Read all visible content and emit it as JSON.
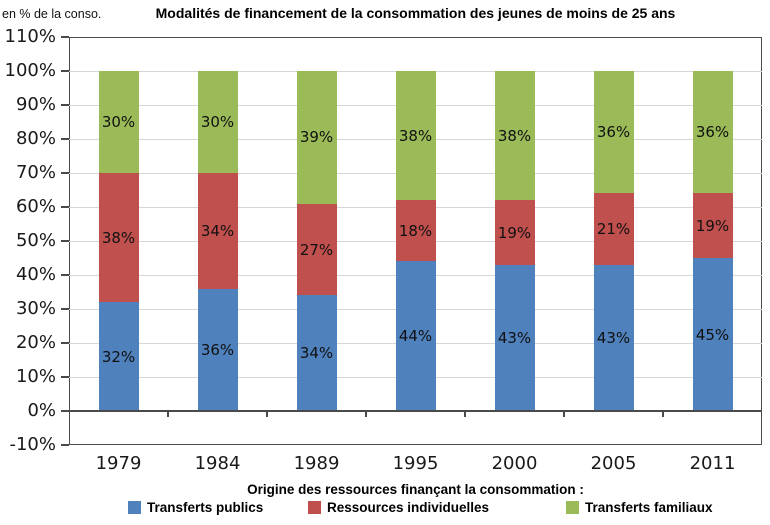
{
  "chart_data": {
    "type": "bar",
    "stacked": true,
    "title": "Modalités de financement de la consommation des jeunes de moins de 25 ans",
    "unit_note": "en % de la conso.",
    "categories": [
      "1979",
      "1984",
      "1989",
      "1995",
      "2000",
      "2005",
      "2011"
    ],
    "series": [
      {
        "name": "Transferts publics",
        "color": "#4F81BD",
        "values": [
          32,
          36,
          34,
          44,
          43,
          43,
          45
        ]
      },
      {
        "name": "Ressources individuelles",
        "color": "#C0504D",
        "values": [
          38,
          34,
          27,
          18,
          19,
          21,
          19
        ]
      },
      {
        "name": "Transferts familiaux",
        "color": "#9BBB59",
        "values": [
          30,
          30,
          39,
          38,
          38,
          36,
          36
        ]
      }
    ],
    "ylim": [
      -10,
      110
    ],
    "ytick_step": 10,
    "yticks": [
      "110%",
      "100%",
      "90%",
      "80%",
      "70%",
      "60%",
      "50%",
      "40%",
      "30%",
      "20%",
      "10%",
      "0%",
      "-10%"
    ],
    "bar_label_suffix": "%",
    "grid": true,
    "legend_title": "Origine des ressources finançant la consommation :",
    "legend_position": "bottom",
    "legend": [
      "Transferts publics",
      "Ressources individuelles",
      "Transferts familiaux"
    ]
  },
  "colors": {
    "grid": "#D6D6D6",
    "frame": "#4a4a4a",
    "zero_axis": "#4a4a4a",
    "text": "#1a1a1a",
    "series_blue": "#4F81BD",
    "series_red": "#C0504D",
    "series_green": "#9BBB59"
  }
}
